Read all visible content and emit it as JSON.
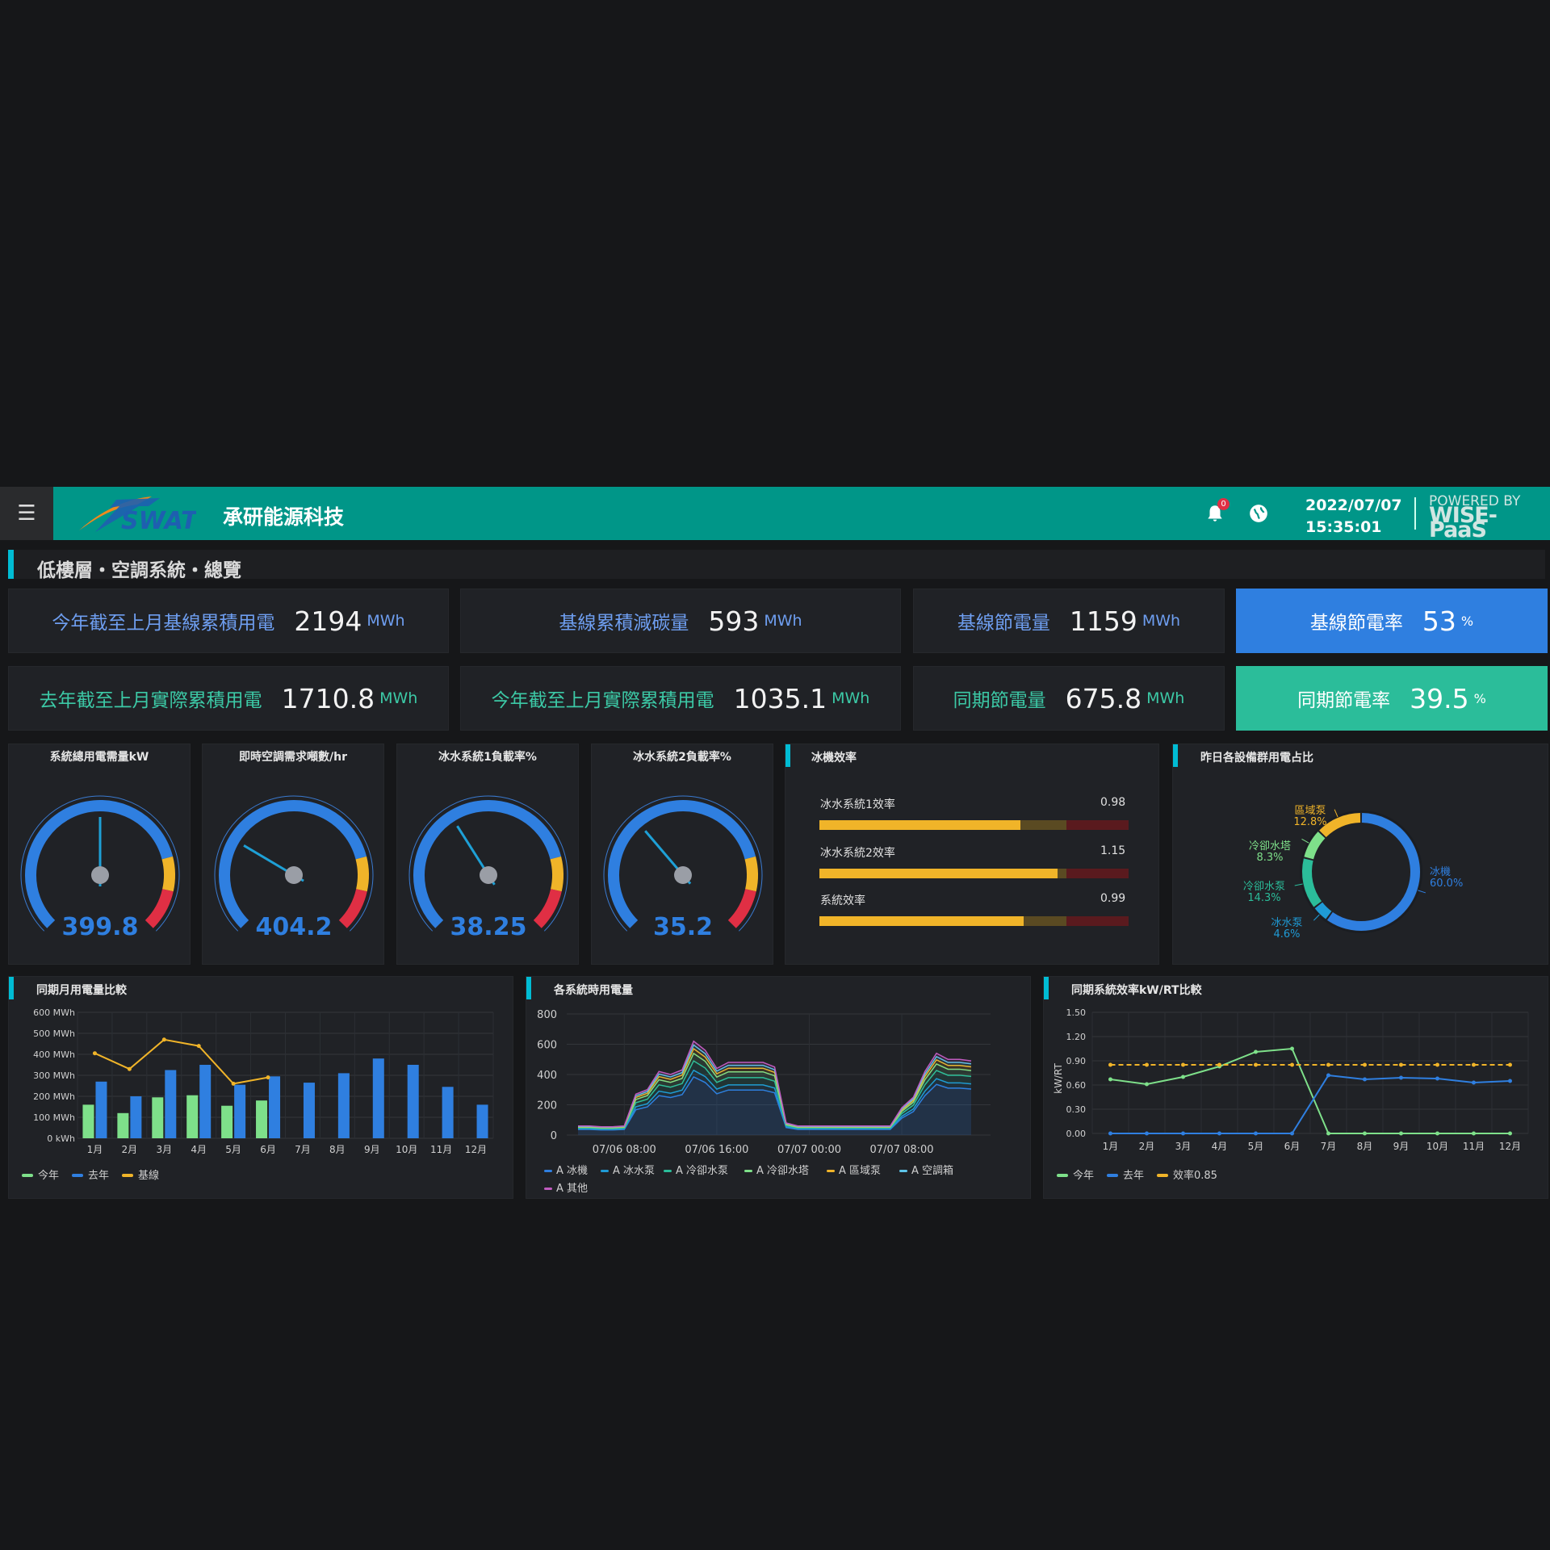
{
  "header": {
    "menu_icon": "hamburger-icon",
    "logo_text": "SWAT",
    "company": "承研能源科技",
    "notification_count": "0",
    "date": "2022/07/07",
    "time": "15:35:01",
    "powered_by": "POWERED BY",
    "platform": "WISE-PaaS"
  },
  "page_title": "低樓層・空調系統・總覽",
  "kpis": [
    {
      "label": "今年截至上月基線累積用電",
      "value": "2194",
      "unit": "MWh"
    },
    {
      "label": "基線累積減碳量",
      "value": "593",
      "unit": "MWh"
    },
    {
      "label": "基線節電量",
      "value": "1159",
      "unit": "MWh"
    },
    {
      "label": "基線節電率",
      "value": "53",
      "unit": "%"
    },
    {
      "label": "去年截至上月實際累積用電",
      "value": "1710.8",
      "unit": "MWh"
    },
    {
      "label": "今年截至上月實際累積用電",
      "value": "1035.1",
      "unit": "MWh"
    },
    {
      "label": "同期節電量",
      "value": "675.8",
      "unit": "MWh"
    },
    {
      "label": "同期節電率",
      "value": "39.5",
      "unit": "%"
    }
  ],
  "colors": {
    "teal": "#009688",
    "blue": "#2f7fe0",
    "green": "#2bbd9a",
    "yellow": "#f0b429",
    "red": "#e02f44",
    "light_green": "#7ee08a"
  },
  "gauges": [
    {
      "title": "系統總用電需量kW",
      "value": "399.8",
      "fraction": 0.5
    },
    {
      "title": "即時空調需求噸數/hr",
      "value": "404.2",
      "fraction": 0.28
    },
    {
      "title": "冰水系統1負載率%",
      "value": "38.25",
      "fraction": 0.38
    },
    {
      "title": "冰水系統2負載率%",
      "value": "35.2",
      "fraction": 0.35
    }
  ],
  "efficiency": {
    "title": "冰機效率",
    "bars": [
      {
        "label": "冰水系統1效率",
        "value": "0.98",
        "fill": 0.65
      },
      {
        "label": "冰水系統2效率",
        "value": "1.15",
        "fill": 0.77
      },
      {
        "label": "系統效率",
        "value": "0.99",
        "fill": 0.66
      }
    ]
  },
  "donut": {
    "title": "昨日各設備群用電占比",
    "slices": [
      {
        "name": "冰機",
        "pct": "60.0%",
        "value": 60.0,
        "color": "#2f7fe0"
      },
      {
        "name": "冰水泵",
        "pct": "4.6%",
        "value": 4.6,
        "color": "#1f9bd6"
      },
      {
        "name": "冷卻水泵",
        "pct": "14.3%",
        "value": 14.3,
        "color": "#2bbd9a"
      },
      {
        "name": "冷卻水塔",
        "pct": "8.3%",
        "value": 8.3,
        "color": "#7ee08a"
      },
      {
        "name": "區域泵",
        "pct": "12.8%",
        "value": 12.8,
        "color": "#f0b429"
      }
    ]
  },
  "chart_data": [
    {
      "type": "bar",
      "title": "同期月用電量比較",
      "categories": [
        "1月",
        "2月",
        "3月",
        "4月",
        "5月",
        "6月",
        "7月",
        "8月",
        "9月",
        "10月",
        "11月",
        "12月"
      ],
      "ylim": [
        0,
        600
      ],
      "yticks": [
        "0 kWh",
        "100 MWh",
        "200 MWh",
        "300 MWh",
        "400 MWh",
        "500 MWh",
        "600 MWh"
      ],
      "series": [
        {
          "name": "今年",
          "color": "#7ee08a",
          "values": [
            160,
            120,
            195,
            205,
            155,
            180,
            null,
            null,
            null,
            null,
            null,
            null
          ]
        },
        {
          "name": "去年",
          "color": "#2f7fe0",
          "values": [
            270,
            200,
            325,
            350,
            255,
            295,
            265,
            310,
            380,
            350,
            245,
            160
          ]
        },
        {
          "name": "基線",
          "color": "#f0b429",
          "type": "line",
          "values": [
            405,
            330,
            470,
            440,
            260,
            290,
            null,
            null,
            null,
            null,
            null,
            null
          ]
        }
      ]
    },
    {
      "type": "area",
      "title": "各系統時用電量",
      "ylim": [
        0,
        800
      ],
      "yticks": [
        "0",
        "200",
        "400",
        "600",
        "800"
      ],
      "xticks": [
        "07/06 08:00",
        "07/06 16:00",
        "07/07 00:00",
        "07/07 08:00"
      ],
      "series": [
        {
          "name": "A 冰機",
          "color": "#2f7fe0"
        },
        {
          "name": "A 冰水泵",
          "color": "#1f9bd6"
        },
        {
          "name": "A 冷卻水泵",
          "color": "#2bbd9a"
        },
        {
          "name": "A 冷卻水塔",
          "color": "#7ee08a"
        },
        {
          "name": "A 區域泵",
          "color": "#f0b429"
        },
        {
          "name": "A 空調箱",
          "color": "#5ec4e8"
        },
        {
          "name": "A 其他",
          "color": "#c05bbf"
        }
      ],
      "total": [
        60,
        60,
        55,
        55,
        60,
        270,
        300,
        420,
        400,
        430,
        620,
        560,
        440,
        480,
        480,
        480,
        480,
        450,
        80,
        60,
        60,
        60,
        60,
        60,
        60,
        60,
        60,
        60,
        180,
        250,
        420,
        540,
        500,
        500,
        490
      ]
    },
    {
      "type": "line",
      "title": "同期系統效率kW/RT比較",
      "ylabel": "kW/RT",
      "categories": [
        "1月",
        "2月",
        "3月",
        "4月",
        "5月",
        "6月",
        "7月",
        "8月",
        "9月",
        "10月",
        "11月",
        "12月"
      ],
      "ylim": [
        0,
        1.5
      ],
      "yticks": [
        "0.00",
        "0.30",
        "0.60",
        "0.90",
        "1.20",
        "1.50"
      ],
      "series": [
        {
          "name": "今年",
          "color": "#7ee08a",
          "values": [
            0.67,
            0.61,
            0.7,
            0.83,
            1.01,
            1.05,
            0,
            0,
            0,
            0,
            0,
            0
          ]
        },
        {
          "name": "去年",
          "color": "#2f7fe0",
          "values": [
            0,
            0,
            0,
            0,
            0,
            0,
            0.72,
            0.67,
            0.69,
            0.68,
            0.63,
            0.65
          ]
        },
        {
          "name": "效率0.85",
          "color": "#f0b429",
          "dashed": true,
          "values": [
            0.85,
            0.85,
            0.85,
            0.85,
            0.85,
            0.85,
            0.85,
            0.85,
            0.85,
            0.85,
            0.85,
            0.85
          ]
        }
      ]
    }
  ]
}
